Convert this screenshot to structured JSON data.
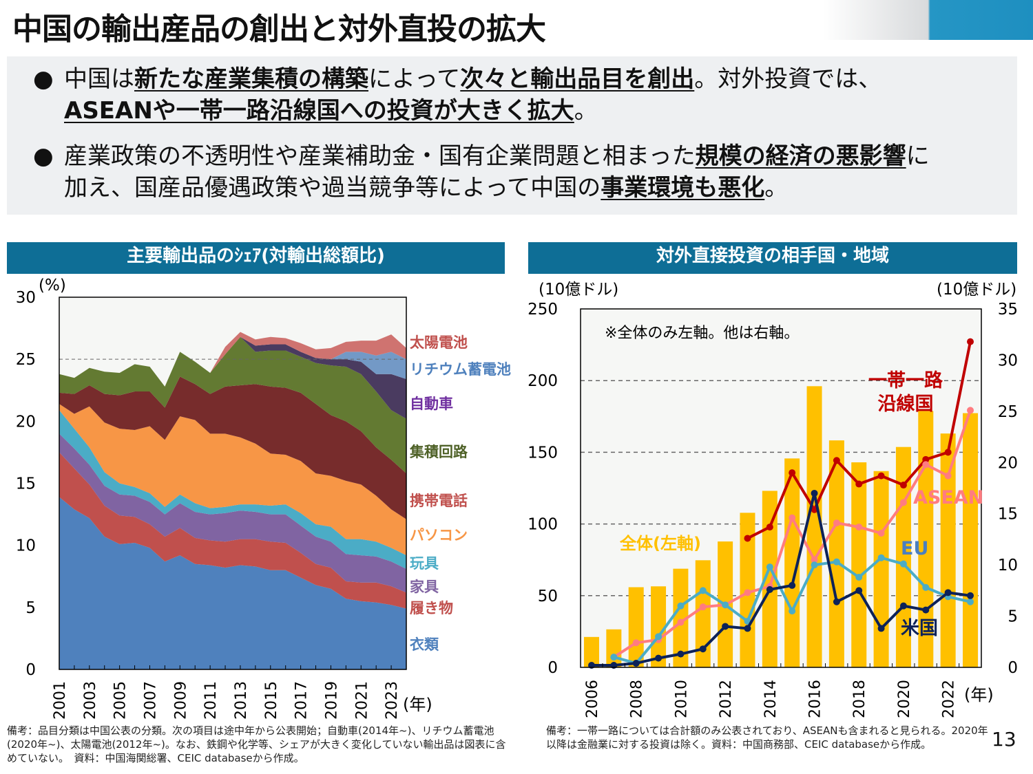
{
  "title": "中国の輸出産品の創出と対外直投の拡大",
  "bullets": [
    {
      "segments": [
        {
          "t": "中国は",
          "b": false
        },
        {
          "t": "新たな産業集積の構築",
          "b": true
        },
        {
          "t": "によって",
          "b": false
        },
        {
          "t": "次々と輸出品目を創出",
          "b": true
        },
        {
          "t": "。対外投資では、",
          "b": false
        },
        {
          "t": "ASEANや一帯一路沿線国への投資が大きく拡大",
          "b": true
        },
        {
          "t": "。",
          "b": false
        }
      ]
    },
    {
      "segments": [
        {
          "t": "産業政策の不透明性や産業補助金・国有企業問題と相まった",
          "b": false
        },
        {
          "t": "規模の経済の悪影響",
          "b": true
        },
        {
          "t": "に加え、国産品優遇政策や過当競争等によって中国の",
          "b": false
        },
        {
          "t": "事業環境も悪化",
          "b": true
        },
        {
          "t": "。",
          "b": false
        }
      ]
    }
  ],
  "left_panel": {
    "header": "主要輸出品のｼｪｱ(対輸出総額比)",
    "note": "備考：品目分類は中国公表の分類。次の項目は途中年から公表開始；自動車(2014年~)、リチウム蓄電池(2020年~)、太陽電池(2012年~)。なお、鉄鋼や化学等、シェアが大きく変化していない輸出品は図表に含めていない。　資料：中国海関総署、CEIC databaseから作成。"
  },
  "right_panel": {
    "header": "対外直接投資の相手国・地域",
    "note": "備考：一帯一路については合計額のみ公表されており、ASEANも含まれると見られる。2020年以降は金融業に対する投資は除く。資料：中国商務部、CEIC databaseから作成。"
  },
  "page_number": "13",
  "chart_data": [
    {
      "type": "area",
      "stacked": true,
      "ylabel": "(%)",
      "xlabel": "(年)",
      "ylim": [
        0,
        30
      ],
      "yticks": [
        "0",
        "5",
        "10",
        "15",
        "20",
        "25",
        "30"
      ],
      "xtick_labels": [
        "2001",
        "2003",
        "2005",
        "2007",
        "2009",
        "2011",
        "2013",
        "2015",
        "2017",
        "2019",
        "2021",
        "2023"
      ],
      "reference_line": 25,
      "x": [
        2001,
        2002,
        2003,
        2004,
        2005,
        2006,
        2007,
        2008,
        2009,
        2010,
        2011,
        2012,
        2013,
        2014,
        2015,
        2016,
        2017,
        2018,
        2019,
        2020,
        2021,
        2022,
        2023,
        2024
      ],
      "series": [
        {
          "name": "衣類",
          "color": "#4f81bd",
          "values": [
            13.9,
            12.9,
            12.2,
            10.7,
            10.1,
            10.2,
            9.8,
            8.7,
            9.2,
            8.5,
            8.4,
            8.2,
            8.4,
            8.3,
            8.0,
            8.0,
            7.4,
            6.8,
            6.5,
            5.7,
            5.5,
            5.4,
            5.2,
            4.9
          ]
        },
        {
          "name": "履き物",
          "color": "#c0504d",
          "values": [
            3.6,
            3.3,
            2.7,
            2.5,
            2.3,
            2.1,
            1.9,
            2.0,
            2.2,
            2.1,
            2.0,
            2.1,
            2.1,
            2.2,
            2.3,
            2.2,
            2.0,
            1.7,
            1.7,
            1.4,
            1.5,
            1.6,
            1.5,
            1.3
          ]
        },
        {
          "name": "家具",
          "color": "#8064a2",
          "values": [
            1.5,
            1.6,
            1.6,
            1.6,
            1.7,
            1.7,
            1.8,
            1.8,
            2.0,
            2.1,
            2.1,
            2.3,
            2.3,
            2.2,
            2.2,
            2.3,
            2.2,
            2.2,
            2.1,
            2.2,
            2.2,
            2.1,
            2.0,
            1.9
          ]
        },
        {
          "name": "玩具",
          "color": "#4bacc6",
          "values": [
            1.9,
            1.6,
            1.4,
            1.1,
            0.9,
            0.7,
            0.7,
            0.6,
            0.7,
            0.7,
            0.5,
            0.5,
            0.5,
            0.6,
            0.7,
            0.8,
            1.0,
            1.0,
            1.2,
            1.2,
            1.3,
            1.2,
            1.1,
            1.1
          ]
        },
        {
          "name": "パソコン",
          "color": "#f79646",
          "values": [
            0.5,
            1.2,
            3.3,
            4.0,
            4.4,
            4.6,
            5.4,
            5.4,
            6.3,
            6.7,
            6.0,
            5.9,
            5.4,
            4.9,
            4.2,
            4.0,
            4.2,
            4.1,
            4.1,
            4.7,
            4.4,
            3.7,
            3.1,
            2.9
          ]
        },
        {
          "name": "携帯電話",
          "color": "#772c2c",
          "label_color": "#c0504d",
          "values": [
            0.9,
            1.6,
            1.7,
            2.3,
            2.7,
            3.1,
            2.8,
            2.6,
            3.2,
            2.9,
            3.2,
            3.8,
            4.2,
            4.8,
            5.4,
            5.4,
            5.5,
            5.6,
            4.9,
            4.8,
            4.3,
            3.9,
            4.0,
            3.7
          ]
        },
        {
          "name": "集積回路",
          "color": "#637a32",
          "label_color": "#4f6228",
          "values": [
            1.5,
            1.3,
            1.4,
            1.8,
            1.8,
            2.2,
            2.0,
            1.7,
            2.0,
            1.8,
            1.7,
            2.6,
            3.9,
            2.6,
            2.9,
            3.0,
            2.9,
            3.3,
            4.0,
            4.4,
            4.6,
            4.5,
            4.0,
            4.4
          ]
        },
        {
          "name": "自動車",
          "color": "#4a3b60",
          "label_color": "#7030a0",
          "values": [
            0,
            0,
            0,
            0,
            0,
            0,
            0,
            0,
            0,
            0,
            0,
            0,
            0,
            0.5,
            0.5,
            0.5,
            0.4,
            0.4,
            0.5,
            0.6,
            1.0,
            1.4,
            2.9,
            3.2
          ]
        },
        {
          "name": "リチウム蓄電池",
          "color": "#7399c6",
          "label_color": "#4f81bd",
          "values": [
            0,
            0,
            0,
            0,
            0,
            0,
            0,
            0,
            0,
            0,
            0,
            0,
            0,
            0,
            0,
            0,
            0,
            0,
            0,
            0.6,
            0.8,
            1.5,
            1.8,
            1.6
          ]
        },
        {
          "name": "太陽電池",
          "color": "#cf7370",
          "label_color": "#c0504d",
          "values": [
            0,
            0,
            0,
            0,
            0,
            0,
            0,
            0,
            0,
            0,
            0,
            0.6,
            0.4,
            0.5,
            0.6,
            0.5,
            0.7,
            0.7,
            0.9,
            0.8,
            0.9,
            1.2,
            1.4,
            0.9
          ]
        }
      ]
    },
    {
      "type": "bar+line",
      "xlabel": "(年)",
      "left_unit": "(10億ドル)",
      "right_unit": "(10億ドル)",
      "ylim_left": [
        0,
        250
      ],
      "ylim_right": [
        0,
        35
      ],
      "yticks_left": [
        "0",
        "50",
        "100",
        "150",
        "200",
        "250"
      ],
      "yticks_right": [
        "0",
        "5",
        "10",
        "15",
        "20",
        "25",
        "30",
        "35"
      ],
      "xtick_labels": [
        "2006",
        "2008",
        "2010",
        "2012",
        "2014",
        "2016",
        "2018",
        "2020",
        "2022"
      ],
      "annotation": "※全体のみ左軸。他は右軸。",
      "x": [
        2006,
        2007,
        2008,
        2009,
        2010,
        2011,
        2012,
        2013,
        2014,
        2015,
        2016,
        2017,
        2018,
        2019,
        2020,
        2021,
        2022,
        2023
      ],
      "bars": {
        "name": "全体(左軸)",
        "axis": "left",
        "color": "#ffc000",
        "values": [
          21.2,
          26.5,
          55.9,
          56.5,
          68.8,
          74.7,
          87.8,
          107.8,
          123.1,
          145.7,
          196.1,
          158.3,
          143.0,
          136.9,
          153.7,
          178.8,
          163.1,
          177.3
        ]
      },
      "lines": [
        {
          "name": "一帯一路 沿線国",
          "axis": "right",
          "color": "#c00000",
          "values": [
            null,
            null,
            null,
            null,
            null,
            null,
            null,
            12.6,
            13.7,
            19.0,
            15.4,
            20.2,
            17.9,
            18.7,
            17.8,
            20.3,
            21.0,
            31.8
          ]
        },
        {
          "name": "ASEAN",
          "axis": "right",
          "color": "#ff7c80",
          "values": [
            null,
            1.0,
            2.4,
            2.7,
            4.4,
            5.9,
            6.1,
            7.3,
            7.9,
            14.6,
            10.5,
            14.1,
            13.7,
            13.1,
            16.1,
            19.8,
            18.7,
            25.1
          ]
        },
        {
          "name": "EU",
          "axis": "right",
          "color": "#4bacc6",
          "label_color": "#4a7fc0",
          "values": [
            null,
            1.0,
            0.4,
            3.0,
            6.0,
            7.5,
            6.1,
            4.5,
            9.8,
            5.5,
            10.0,
            10.3,
            8.8,
            10.7,
            10.1,
            7.8,
            6.9,
            6.4
          ]
        },
        {
          "name": "米国",
          "axis": "right",
          "color": "#0d2258",
          "values": [
            0.2,
            0.2,
            0.4,
            0.9,
            1.3,
            1.8,
            4.0,
            3.8,
            7.6,
            8.0,
            17.0,
            6.4,
            7.5,
            3.8,
            6.0,
            5.6,
            7.3,
            7.0
          ]
        }
      ]
    }
  ]
}
